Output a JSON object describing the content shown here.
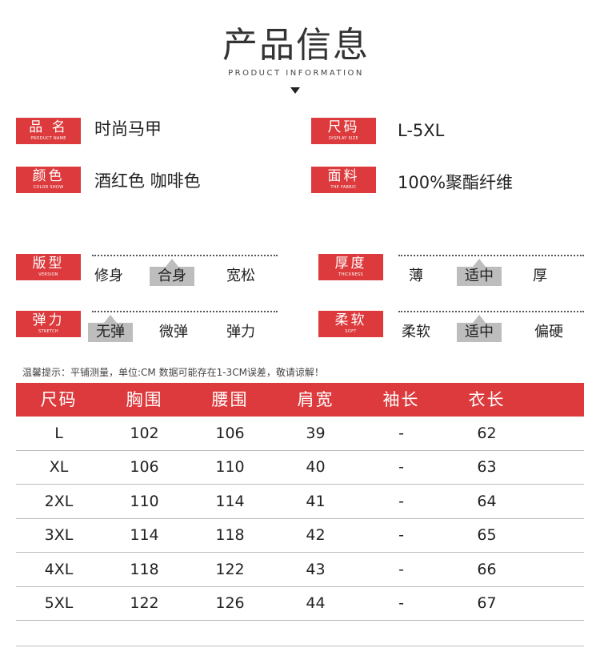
{
  "header": {
    "title": "产品信息",
    "subtitle": "PRODUCT INFORMATION"
  },
  "specs": [
    {
      "label": "品 名",
      "label_en": "PRODUCT NAME",
      "value": "时尚马甲"
    },
    {
      "label": "尺码",
      "label_en": "DISPLAY SIZE",
      "value": "L-5XL"
    },
    {
      "label": "颜色",
      "label_en": "COLOR SHOW",
      "value": "酒红色 咖啡色"
    },
    {
      "label": "面料",
      "label_en": "THE FABRIC",
      "value": "100%聚酯纤维"
    }
  ],
  "scales": [
    {
      "label": "版型",
      "label_en": "VERSION",
      "options": [
        "修身",
        "合身",
        "宽松"
      ],
      "selected": 1
    },
    {
      "label": "厚度",
      "label_en": "THICKNESS",
      "options": [
        "薄",
        "适中",
        "厚"
      ],
      "selected": 1
    },
    {
      "label": "弹力",
      "label_en": "STRETCH",
      "options": [
        "无弹",
        "微弹",
        "弹力"
      ],
      "selected": 0
    },
    {
      "label": "柔软",
      "label_en": "SOFT",
      "options": [
        "柔软",
        "适中",
        "偏硬"
      ],
      "selected": 1
    }
  ],
  "note": "温馨提示：平铺测量，单位:CM 数据可能存在1-3CM误差，敬请谅解！",
  "table": {
    "headers": [
      "尺码",
      "胸围",
      "腰围",
      "肩宽",
      "袖长",
      "衣长"
    ],
    "rows": [
      [
        "L",
        "102",
        "106",
        "39",
        "-",
        "62"
      ],
      [
        "XL",
        "106",
        "110",
        "40",
        "-",
        "63"
      ],
      [
        "2XL",
        "110",
        "114",
        "41",
        "-",
        "64"
      ],
      [
        "3XL",
        "114",
        "118",
        "42",
        "-",
        "65"
      ],
      [
        "4XL",
        "118",
        "122",
        "43",
        "-",
        "66"
      ],
      [
        "5XL",
        "122",
        "126",
        "44",
        "-",
        "67"
      ]
    ]
  },
  "colors": {
    "accent": "#dc3a3c",
    "selected": "#bdbdbd"
  }
}
